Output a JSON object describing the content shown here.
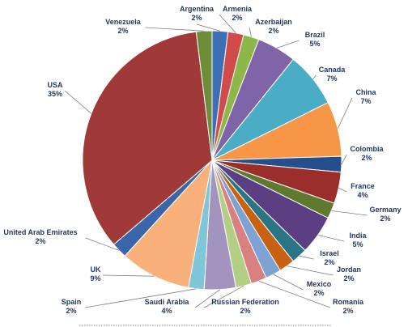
{
  "chart_data": {
    "type": "pie",
    "unit": "%",
    "slices": [
      {
        "label": "Argentina",
        "value": 2,
        "display": "2%",
        "color": "#3d6fb6"
      },
      {
        "label": "Armenia",
        "value": 2,
        "display": "2%",
        "color": "#d24b4b"
      },
      {
        "label": "Azerbaijan",
        "value": 2,
        "display": "2%",
        "color": "#8eb74a"
      },
      {
        "label": "Brazil",
        "value": 5,
        "display": "5%",
        "color": "#7f64a8"
      },
      {
        "label": "Canada",
        "value": 7,
        "display": "7%",
        "color": "#4bacc6"
      },
      {
        "label": "China",
        "value": 7,
        "display": "7%",
        "color": "#f79646"
      },
      {
        "label": "Colombia",
        "value": 2,
        "display": "2%",
        "color": "#264d8c"
      },
      {
        "label": "France",
        "value": 4,
        "display": "4%",
        "color": "#9b2d2a"
      },
      {
        "label": "Germany",
        "value": 2,
        "display": "2%",
        "color": "#5f7a2e"
      },
      {
        "label": "India",
        "value": 5,
        "display": "5%",
        "color": "#5b3f82"
      },
      {
        "label": "Israel",
        "value": 2,
        "display": "2%",
        "color": "#2a7585"
      },
      {
        "label": "Jordan",
        "value": 2,
        "display": "2%",
        "color": "#c86112"
      },
      {
        "label": "Mexico",
        "value": 2,
        "display": "2%",
        "color": "#7fa2d4"
      },
      {
        "label": "Romania",
        "value": 2,
        "display": "2%",
        "color": "#d98080"
      },
      {
        "label": "Russian Federation",
        "value": 2,
        "display": "2%",
        "color": "#b3cf85"
      },
      {
        "label": "Saudi Arabia",
        "value": 4,
        "display": "4%",
        "color": "#a393bf"
      },
      {
        "label": "Spain",
        "value": 2,
        "display": "2%",
        "color": "#7fc6d8"
      },
      {
        "label": "UK",
        "value": 9,
        "display": "9%",
        "color": "#f9b07a"
      },
      {
        "label": "United Arab Emirates",
        "value": 2,
        "display": "2%",
        "color": "#3a65a8"
      },
      {
        "label": "USA",
        "value": 35,
        "display": "35%",
        "color": "#a03a38"
      },
      {
        "label": "Venezuela",
        "value": 2,
        "display": "2%",
        "color": "#6f8c3a"
      }
    ],
    "start_angle_deg": 0,
    "direction": "clockwise",
    "legend": "none"
  }
}
